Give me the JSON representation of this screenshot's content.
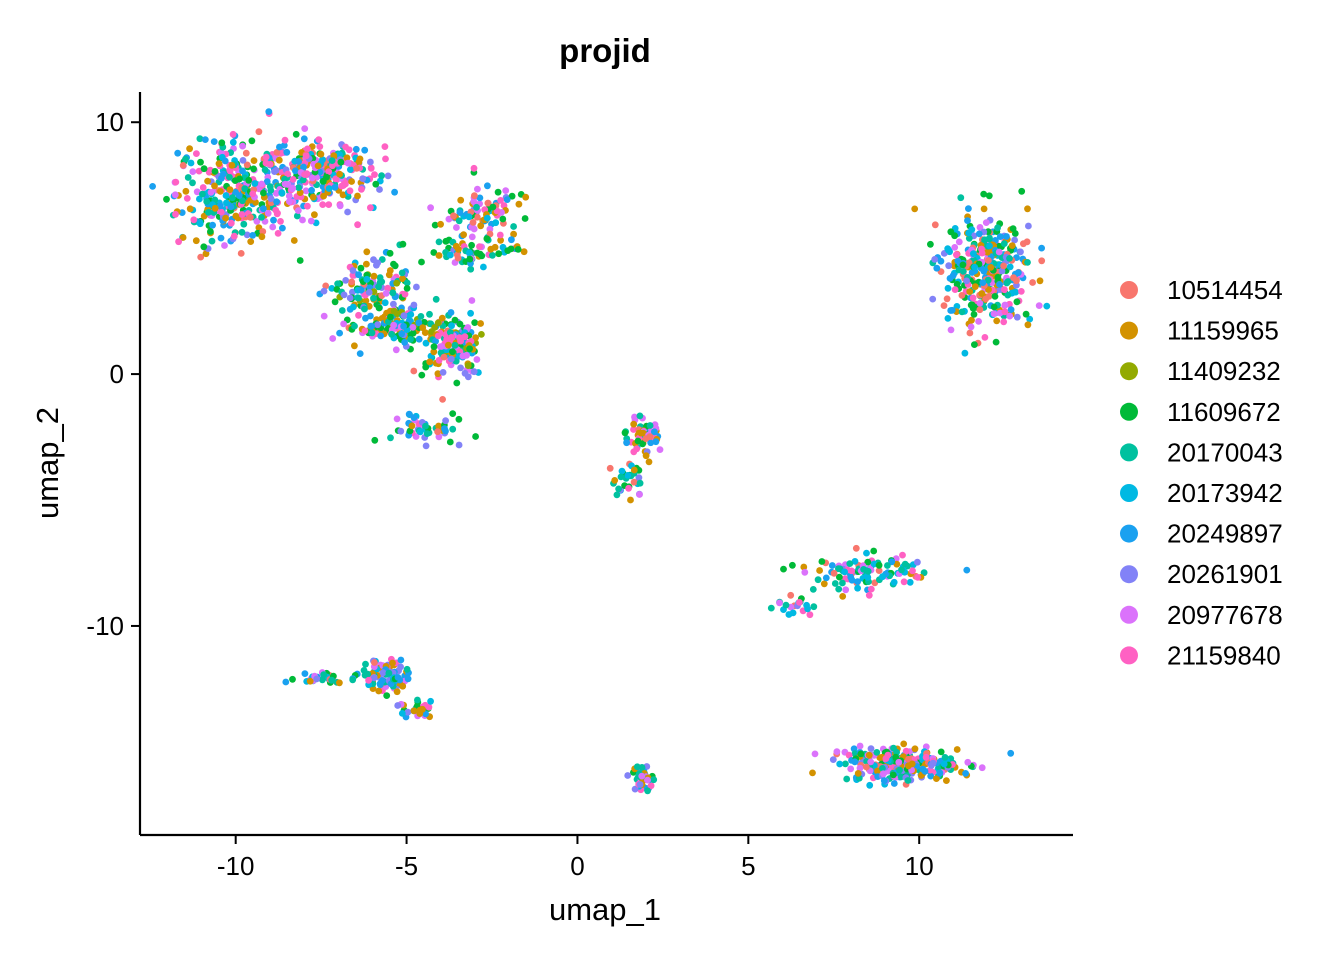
{
  "chart_data": {
    "type": "scatter",
    "title": "projid",
    "xlabel": "umap_1",
    "ylabel": "umap_2",
    "xlim": [
      -12.8,
      14.5
    ],
    "ylim": [
      -18.3,
      11.2
    ],
    "x_ticks": [
      -10,
      -5,
      0,
      5,
      10
    ],
    "y_ticks": [
      -10,
      0,
      10
    ],
    "x_tick_labels": [
      "-10",
      "-5",
      "0",
      "5",
      "10"
    ],
    "y_tick_labels": [
      "-10",
      "0",
      "10"
    ],
    "grid": false,
    "legend_position": "right",
    "series": [
      {
        "name": "10514454",
        "color": "#F8766D"
      },
      {
        "name": "11159965",
        "color": "#D39200"
      },
      {
        "name": "11409232",
        "color": "#93AA00"
      },
      {
        "name": "11609672",
        "color": "#00BA38"
      },
      {
        "name": "20170043",
        "color": "#00C19F"
      },
      {
        "name": "20173942",
        "color": "#00B9E3"
      },
      {
        "name": "20249897",
        "color": "#1AA1F0"
      },
      {
        "name": "20261901",
        "color": "#8282F7"
      },
      {
        "name": "20977678",
        "color": "#DB72FB"
      },
      {
        "name": "21159840",
        "color": "#FF61C3"
      }
    ],
    "clusters": [
      {
        "cx": -10.0,
        "cy": 7.2,
        "sx": 1.2,
        "sy": 1.5,
        "n": 340,
        "mix": [
          1,
          4,
          0,
          3,
          3,
          2,
          3,
          1,
          2,
          3
        ]
      },
      {
        "cx": -7.5,
        "cy": 8.0,
        "sx": 1.1,
        "sy": 1.0,
        "n": 260,
        "mix": [
          1,
          3,
          0,
          2,
          2,
          2,
          2,
          2,
          3,
          5
        ]
      },
      {
        "cx": -6.0,
        "cy": 3.2,
        "sx": 0.9,
        "sy": 1.0,
        "n": 140,
        "mix": [
          1,
          4,
          1,
          3,
          3,
          2,
          4,
          2,
          1,
          1
        ]
      },
      {
        "cx": -5.4,
        "cy": 1.8,
        "sx": 1.0,
        "sy": 0.5,
        "n": 110,
        "mix": [
          1,
          4,
          1,
          4,
          3,
          2,
          3,
          2,
          2,
          1
        ]
      },
      {
        "cx": -3.6,
        "cy": 1.1,
        "sx": 0.6,
        "sy": 0.8,
        "n": 140,
        "mix": [
          1,
          4,
          1,
          3,
          3,
          2,
          2,
          2,
          2,
          2
        ]
      },
      {
        "cx": -2.8,
        "cy": 6.3,
        "sx": 0.8,
        "sy": 0.9,
        "n": 90,
        "mix": [
          1,
          3,
          0,
          3,
          3,
          2,
          2,
          1,
          3,
          2
        ]
      },
      {
        "cx": -3.0,
        "cy": 4.8,
        "sx": 1.0,
        "sy": 0.4,
        "n": 60,
        "mix": [
          1,
          3,
          0,
          3,
          3,
          2,
          2,
          1,
          2,
          2
        ]
      },
      {
        "cx": -4.5,
        "cy": -2.2,
        "sx": 0.8,
        "sy": 0.4,
        "n": 50,
        "mix": [
          1,
          3,
          0,
          2,
          3,
          2,
          3,
          2,
          2,
          1
        ]
      },
      {
        "cx": 1.9,
        "cy": -2.5,
        "sx": 0.35,
        "sy": 0.6,
        "n": 60,
        "mix": [
          1,
          4,
          0,
          2,
          3,
          2,
          2,
          1,
          3,
          1
        ]
      },
      {
        "cx": 1.5,
        "cy": -4.3,
        "sx": 0.3,
        "sy": 0.5,
        "n": 30,
        "mix": [
          1,
          3,
          0,
          2,
          3,
          3,
          2,
          1,
          2,
          1
        ]
      },
      {
        "cx": 12.0,
        "cy": 4.2,
        "sx": 0.9,
        "sy": 1.6,
        "n": 360,
        "mix": [
          4,
          3,
          0,
          4,
          3,
          3,
          4,
          2,
          3,
          2
        ]
      },
      {
        "cx": 8.4,
        "cy": -7.9,
        "sx": 1.2,
        "sy": 0.5,
        "n": 110,
        "mix": [
          1,
          2,
          0,
          2,
          4,
          2,
          2,
          2,
          3,
          3
        ]
      },
      {
        "cx": 6.2,
        "cy": -9.2,
        "sx": 0.5,
        "sy": 0.3,
        "n": 20,
        "mix": [
          1,
          1,
          0,
          1,
          3,
          2,
          2,
          1,
          1,
          1
        ]
      },
      {
        "cx": -5.6,
        "cy": -12.0,
        "sx": 0.5,
        "sy": 0.5,
        "n": 90,
        "mix": [
          1,
          4,
          0,
          2,
          3,
          2,
          3,
          2,
          2,
          1
        ]
      },
      {
        "cx": -7.5,
        "cy": -12.1,
        "sx": 0.6,
        "sy": 0.15,
        "n": 40,
        "mix": [
          1,
          3,
          0,
          2,
          2,
          2,
          2,
          1,
          2,
          1
        ]
      },
      {
        "cx": -4.7,
        "cy": -13.3,
        "sx": 0.4,
        "sy": 0.3,
        "n": 25,
        "mix": [
          1,
          3,
          0,
          2,
          2,
          2,
          2,
          2,
          2,
          2
        ]
      },
      {
        "cx": 1.9,
        "cy": -16.0,
        "sx": 0.2,
        "sy": 0.35,
        "n": 40,
        "mix": [
          2,
          3,
          0,
          2,
          3,
          1,
          1,
          1,
          2,
          2
        ]
      },
      {
        "cx": 9.5,
        "cy": -15.5,
        "sx": 1.2,
        "sy": 0.5,
        "n": 250,
        "mix": [
          1,
          4,
          0,
          2,
          3,
          2,
          3,
          3,
          3,
          2
        ]
      }
    ]
  }
}
